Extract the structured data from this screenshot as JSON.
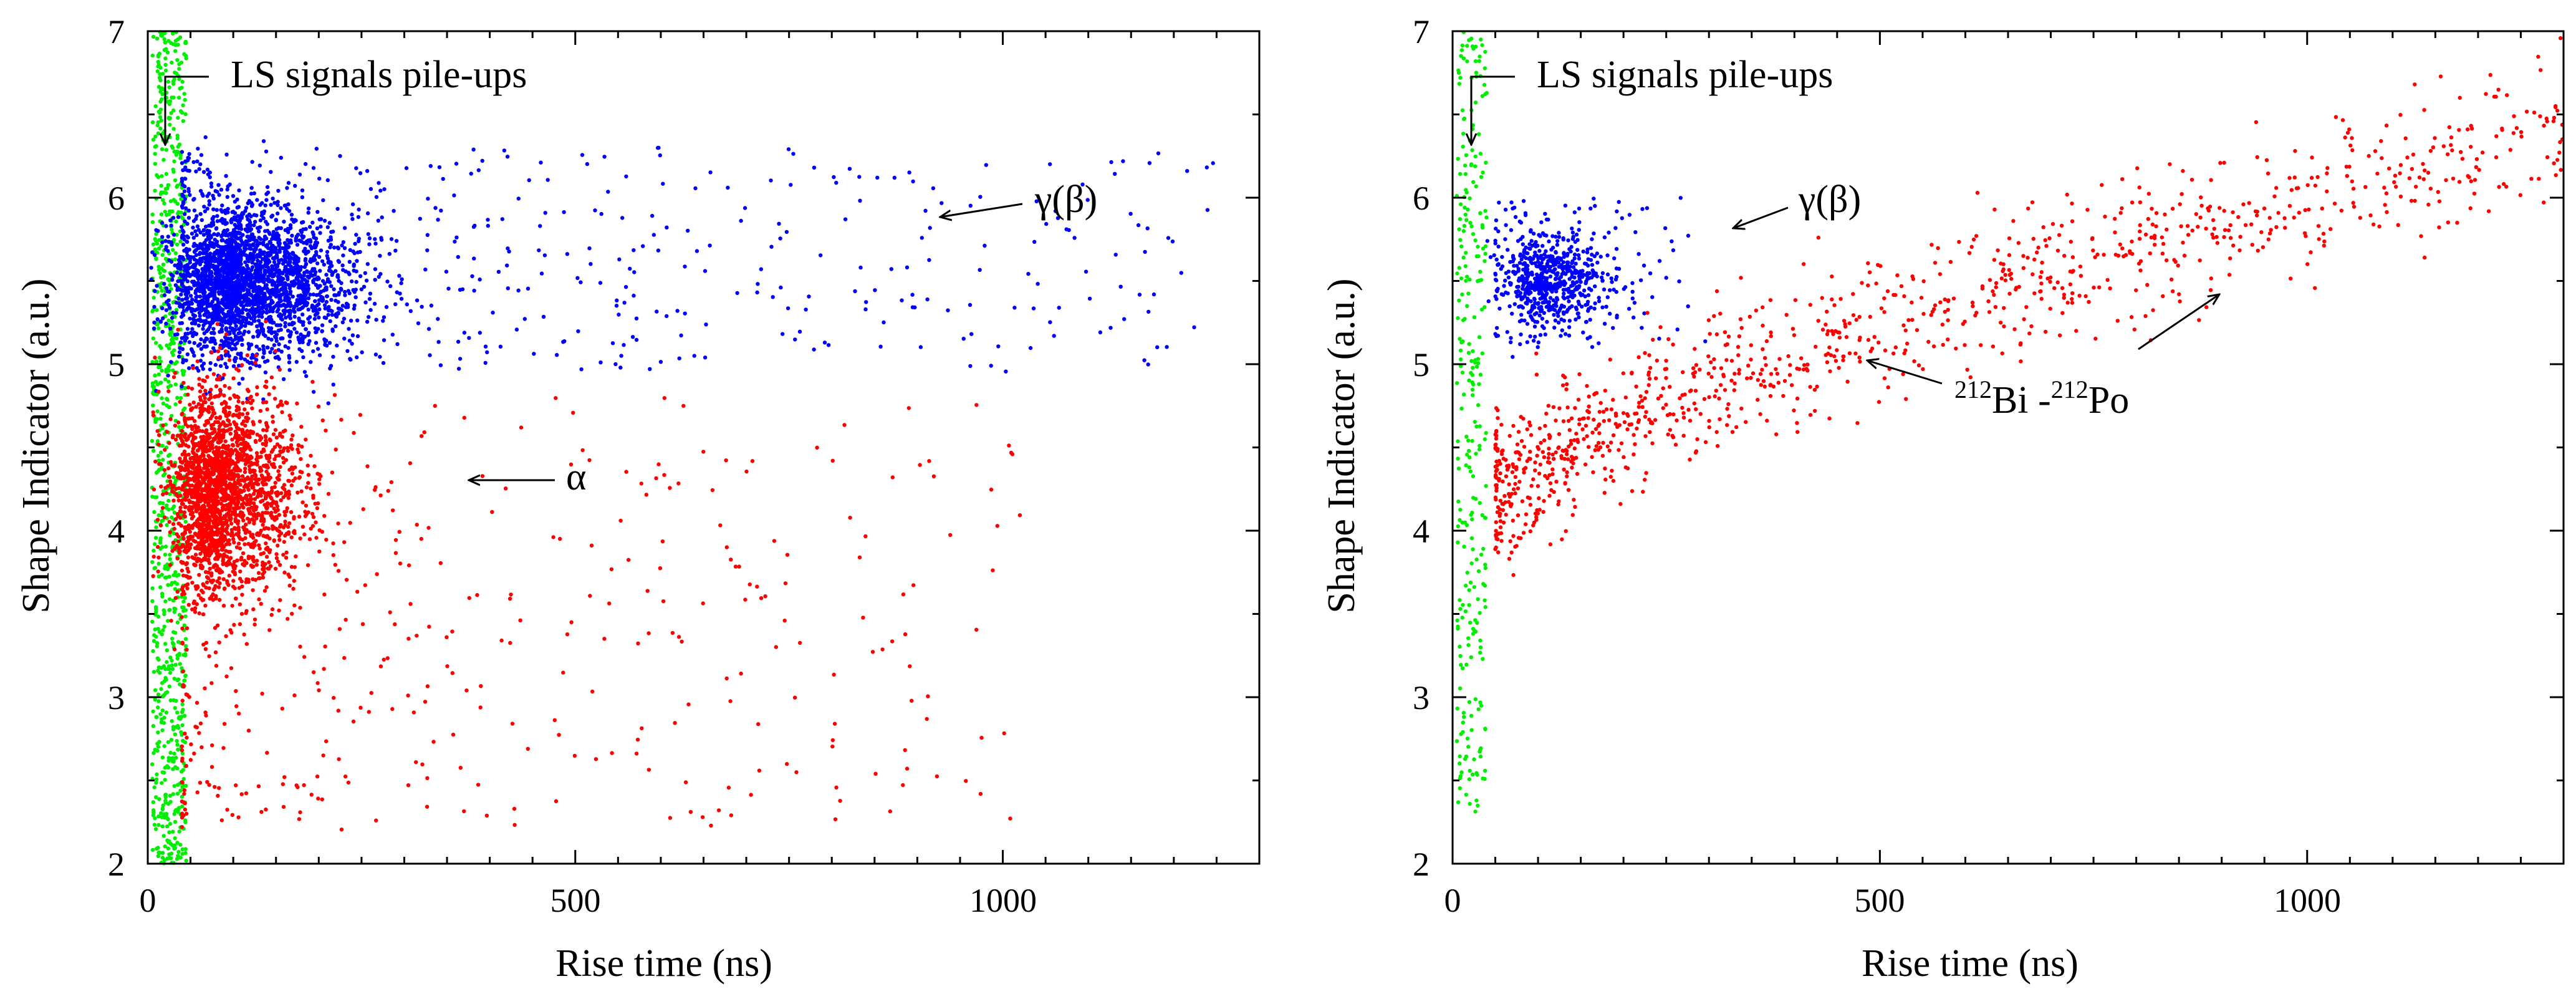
{
  "colors": {
    "gamma": "#0000ff",
    "alpha": "#ff0000",
    "pileup": "#00ee00",
    "axis": "#000000"
  },
  "chart_data": [
    {
      "type": "scatter",
      "panel": "left",
      "title": "",
      "xlabel": "Rise time (ns)",
      "ylabel": "Shape Indicator (a.u.)",
      "xlim": [
        0,
        1300
      ],
      "ylim": [
        2,
        7
      ],
      "xticks": [
        0,
        500,
        1000
      ],
      "xtick_labels": [
        "0",
        "500",
        "1000"
      ],
      "yticks": [
        2,
        3,
        4,
        5,
        6,
        7
      ],
      "ytick_labels": [
        "2",
        "3",
        "4",
        "5",
        "6",
        "7"
      ],
      "series": [
        {
          "name": "LS signals pile-ups",
          "color": "#00ee00",
          "points": 900,
          "x_range": [
            5,
            45
          ],
          "y_range": [
            2.0,
            7.0
          ],
          "concentration": "uniform"
        },
        {
          "name": "γ(β)",
          "color": "#0000ff",
          "points": 3000,
          "core": {
            "x": 110,
            "y": 5.5,
            "sx": 50,
            "sy": 0.22
          },
          "tail": {
            "x_range": [
              40,
              1250
            ],
            "y_range": [
              4.95,
              6.3
            ]
          }
        },
        {
          "name": "α",
          "color": "#ff0000",
          "points": 2600,
          "core": {
            "x": 85,
            "y": 4.25,
            "sx": 35,
            "sy": 0.3
          },
          "tail": {
            "x_range": [
              40,
              1020
            ],
            "y_range": [
              2.2,
              4.8
            ]
          }
        }
      ],
      "annotations": [
        {
          "text": "LS signals pile-ups"
        },
        {
          "text": "γ(β)"
        },
        {
          "text": "α"
        }
      ]
    },
    {
      "type": "scatter",
      "panel": "right",
      "title": "",
      "xlabel": "Rise time (ns)",
      "ylabel": "Shape Indicator (a.u.)",
      "xlim": [
        0,
        1300
      ],
      "ylim": [
        2,
        7
      ],
      "xticks": [
        0,
        500,
        1000
      ],
      "xtick_labels": [
        "0",
        "500",
        "1000"
      ],
      "yticks": [
        2,
        3,
        4,
        5,
        6,
        7
      ],
      "ytick_labels": [
        "2",
        "3",
        "4",
        "5",
        "6",
        "7"
      ],
      "series": [
        {
          "name": "LS signals pile-ups",
          "color": "#00ee00",
          "points": 280,
          "x_range": [
            5,
            40
          ],
          "y_range": [
            2.3,
            7.0
          ],
          "concentration": "uniform"
        },
        {
          "name": "γ(β)",
          "color": "#0000ff",
          "points": 700,
          "core": {
            "x": 110,
            "y": 5.5,
            "sx": 30,
            "sy": 0.14
          },
          "tail": {
            "x_range": [
              50,
              300
            ],
            "y_range": [
              5.1,
              6.0
            ]
          }
        },
        {
          "name": "212Bi -212Po",
          "color": "#ff0000",
          "points": 1100,
          "trend": {
            "x_start": 50,
            "x_end": 1300,
            "y_start": 4.2,
            "y_end": 6.4
          },
          "spread": 0.22
        }
      ],
      "annotations": [
        {
          "text": "LS signals pile-ups"
        },
        {
          "text": "γ(β)"
        },
        {
          "text_sup1": "212",
          "text_main1": "Bi -",
          "text_sup2": "212",
          "text_main2": "Po"
        }
      ]
    }
  ]
}
